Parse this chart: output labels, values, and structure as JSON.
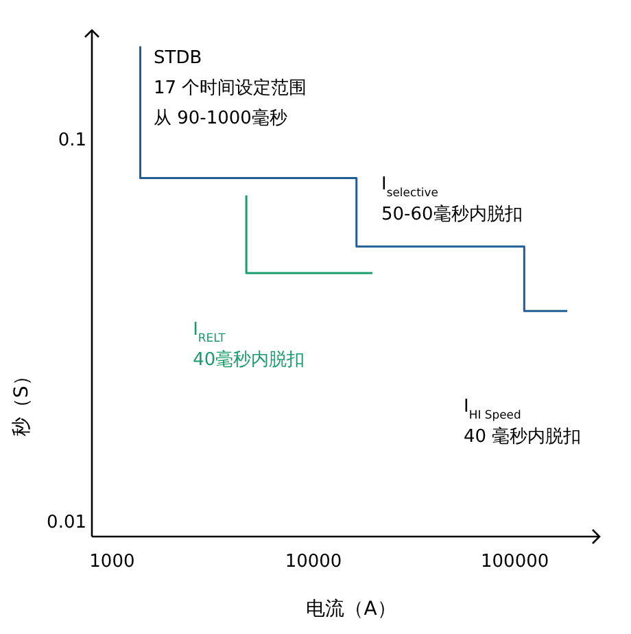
{
  "chart_data": {
    "type": "step",
    "xlabel": "电流（A）",
    "ylabel": "秒（S）",
    "log": "xy",
    "grid": false,
    "xlim": [
      794,
      263000
    ],
    "ylim": [
      0.00922,
      0.194
    ],
    "xticks": [
      1000,
      10000,
      100000
    ],
    "yticks": [
      0.01,
      0.1
    ],
    "series": [
      {
        "color": "#1f5f96",
        "x": [
          1380,
          1380,
          16350,
          16350,
          111300,
          111300,
          182000
        ],
        "values": [
          0.176,
          0.0797,
          0.0797,
          0.0528,
          0.0528,
          0.0358,
          0.0358
        ]
      },
      {
        "name": "I$_{RELT}$40毫秒内脱扣",
        "color": "#1a9b6c",
        "x": [
          4640,
          4640,
          19600
        ],
        "values": [
          0.0718,
          0.045,
          0.045
        ]
      }
    ],
    "annotations": [
      "STDB",
      "17 个时间设定范围",
      "从 90-1000毫秒",
      "I$_{selective}$50-60毫秒内脱扣",
      "I$_{HI Speed}$40 毫秒内脱扣"
    ]
  }
}
